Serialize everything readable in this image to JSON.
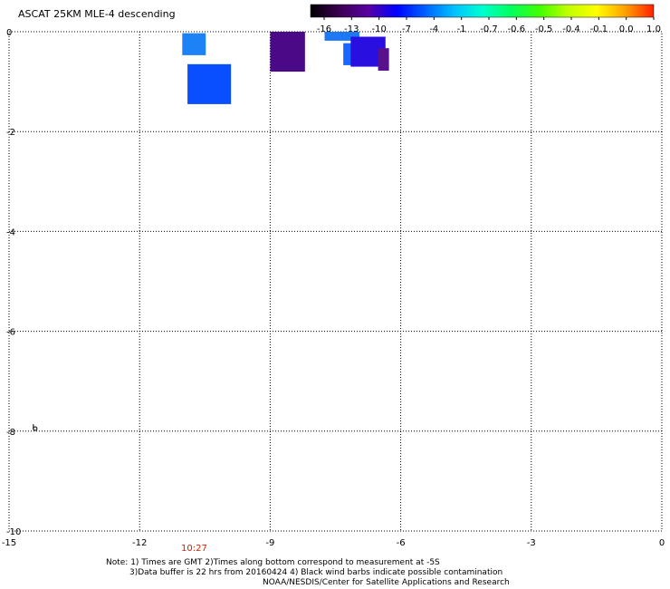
{
  "title": "ASCAT 25KM MLE-4 descending",
  "colorbar": {
    "labels": [
      "-16",
      "-13",
      "-10",
      "-7",
      "-4",
      "-1",
      "-0.7",
      "-0.6",
      "-0.5",
      "-0.4",
      "-0.1",
      "0.0",
      "1.0"
    ],
    "colors": [
      "#000000",
      "#3a0050",
      "#5a00a0",
      "#0000ff",
      "#0060ff",
      "#00c0ff",
      "#00ffd0",
      "#00ff60",
      "#40ff00",
      "#c0ff00",
      "#ffff00",
      "#ffa000",
      "#ff2000"
    ]
  },
  "axes": {
    "x_ticks": [
      "-15",
      "-12",
      "-9",
      "-6",
      "-3",
      "0"
    ],
    "y_ticks": [
      "0",
      "-2",
      "-4",
      "-6",
      "-8",
      "-10"
    ],
    "xlim": [
      -15,
      0
    ],
    "ylim": [
      -10,
      0
    ],
    "grid": true
  },
  "time_label": "10:27",
  "cells": [
    {
      "lon": -10.75,
      "lat": -0.25,
      "color": "#1c82f5"
    },
    {
      "lon": -10.4,
      "lat": -1.05,
      "color": "#0850ff"
    },
    {
      "lon": -8.6,
      "lat": -0.4,
      "color": "#4a0a88"
    },
    {
      "lon": -7.35,
      "lat": -0.05,
      "color": "#1c78f5"
    },
    {
      "lon": -7.05,
      "lat": -0.45,
      "color": "#1a66ff"
    },
    {
      "lon": -6.75,
      "lat": -0.4,
      "color": "#2a10e0"
    },
    {
      "lon": -6.4,
      "lat": -0.55,
      "color": "#58108c"
    }
  ],
  "barb": {
    "lon": -14.4,
    "lat": -7.95
  },
  "notes": [
    "Note: 1) Times are GMT 2)Times along bottom correspond to measurement at -5S",
    "3)Data buffer is 22 hrs from 20160424 4) Black wind barbs indicate possible contamination",
    "NOAA/NESDIS/Center for Satellite Applications and Research"
  ]
}
